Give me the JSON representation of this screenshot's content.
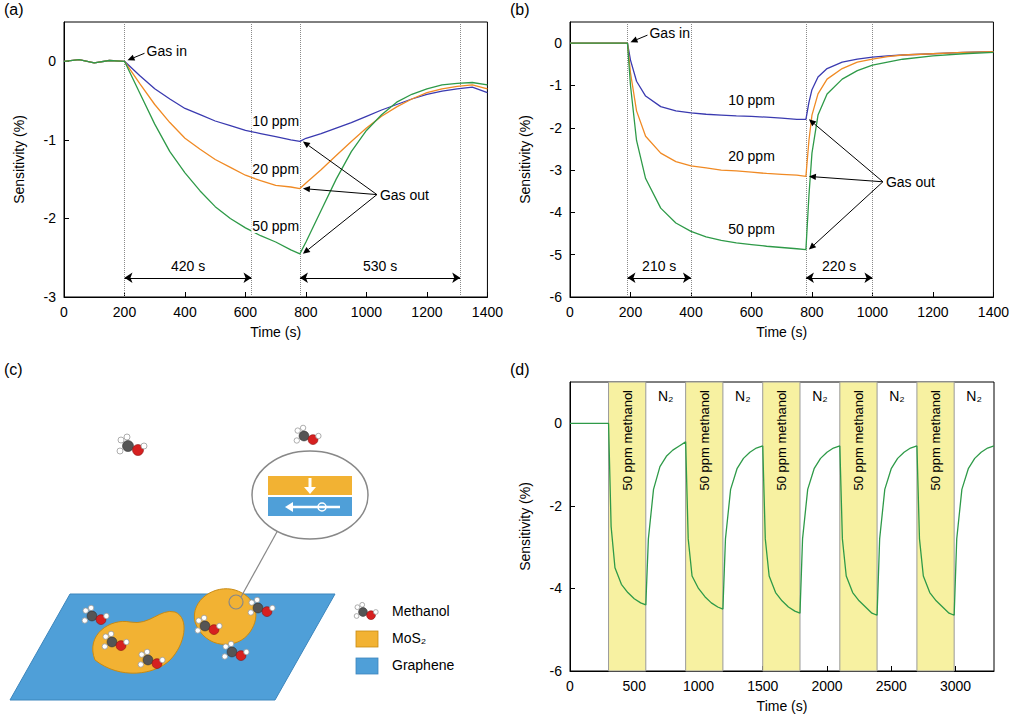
{
  "chart_data": [
    {
      "panel": "(a)",
      "type": "line",
      "x_label": "Time (s)",
      "y_label": "Sensitivity (%)",
      "xlim": [
        0,
        1400
      ],
      "xticks": [
        0,
        200,
        400,
        600,
        800,
        1000,
        1200,
        1400
      ],
      "ylim": [
        -3,
        0.5
      ],
      "yticks": [
        -3,
        -2,
        -1,
        0
      ],
      "grid": false,
      "x": [
        0,
        50,
        100,
        150,
        200,
        250,
        300,
        350,
        400,
        450,
        500,
        550,
        600,
        650,
        700,
        750,
        780,
        800,
        850,
        900,
        950,
        1000,
        1050,
        1100,
        1150,
        1200,
        1250,
        1300,
        1350,
        1400
      ],
      "series": [
        {
          "name": "10 ppm",
          "color": "#3a3ab0",
          "values": [
            0,
            0.02,
            -0.02,
            0.01,
            0,
            -0.18,
            -0.35,
            -0.48,
            -0.6,
            -0.68,
            -0.76,
            -0.82,
            -0.88,
            -0.92,
            -0.96,
            -1.0,
            -1.02,
            -0.98,
            -0.92,
            -0.85,
            -0.78,
            -0.7,
            -0.62,
            -0.55,
            -0.48,
            -0.42,
            -0.38,
            -0.35,
            -0.33,
            -0.4
          ]
        },
        {
          "name": "20 ppm",
          "color": "#f08a24",
          "values": [
            0,
            0.02,
            -0.02,
            0.01,
            0,
            -0.28,
            -0.55,
            -0.78,
            -0.98,
            -1.12,
            -1.25,
            -1.35,
            -1.45,
            -1.52,
            -1.58,
            -1.6,
            -1.62,
            -1.55,
            -1.38,
            -1.2,
            -1.02,
            -0.85,
            -0.7,
            -0.58,
            -0.48,
            -0.4,
            -0.35,
            -0.32,
            -0.3,
            -0.35
          ]
        },
        {
          "name": "50 ppm",
          "color": "#2e9a48",
          "values": [
            0,
            0.02,
            -0.02,
            0.01,
            0,
            -0.4,
            -0.8,
            -1.15,
            -1.42,
            -1.65,
            -1.85,
            -2.0,
            -2.12,
            -2.22,
            -2.3,
            -2.4,
            -2.45,
            -2.3,
            -1.9,
            -1.5,
            -1.15,
            -0.88,
            -0.68,
            -0.52,
            -0.42,
            -0.35,
            -0.3,
            -0.28,
            -0.27,
            -0.3
          ]
        }
      ],
      "annotations": {
        "gas_in": "Gas in",
        "gas_out": "Gas out",
        "spans": [
          {
            "label": "420 s",
            "from": 200,
            "to": 620
          },
          {
            "label": "530 s",
            "from": 780,
            "to": 1310
          }
        ]
      }
    },
    {
      "panel": "(b)",
      "type": "line",
      "x_label": "Time (s)",
      "y_label": "Sensitivity (%)",
      "xlim": [
        0,
        1400
      ],
      "xticks": [
        0,
        200,
        400,
        600,
        800,
        1000,
        1200,
        1400
      ],
      "ylim": [
        -6,
        0.5
      ],
      "yticks": [
        -6,
        -5,
        -4,
        -3,
        -2,
        -1,
        0
      ],
      "grid": false,
      "x": [
        0,
        50,
        100,
        150,
        190,
        200,
        220,
        250,
        300,
        350,
        400,
        450,
        500,
        550,
        600,
        650,
        700,
        750,
        780,
        790,
        800,
        820,
        850,
        900,
        950,
        1000,
        1050,
        1100,
        1200,
        1300,
        1400
      ],
      "series": [
        {
          "name": "10 ppm",
          "color": "#3a3ab0",
          "values": [
            0,
            0,
            0,
            0,
            0,
            -0.4,
            -0.9,
            -1.25,
            -1.5,
            -1.6,
            -1.65,
            -1.68,
            -1.7,
            -1.72,
            -1.73,
            -1.75,
            -1.77,
            -1.8,
            -1.8,
            -1.4,
            -1.1,
            -0.8,
            -0.6,
            -0.45,
            -0.38,
            -0.33,
            -0.3,
            -0.28,
            -0.25,
            -0.22,
            -0.2
          ]
        },
        {
          "name": "20 ppm",
          "color": "#f08a24",
          "values": [
            0,
            0,
            0,
            0,
            0,
            -0.7,
            -1.6,
            -2.2,
            -2.6,
            -2.8,
            -2.9,
            -2.95,
            -3.0,
            -3.02,
            -3.05,
            -3.08,
            -3.1,
            -3.12,
            -3.15,
            -2.3,
            -1.7,
            -1.2,
            -0.85,
            -0.6,
            -0.45,
            -0.38,
            -0.32,
            -0.28,
            -0.25,
            -0.22,
            -0.2
          ]
        },
        {
          "name": "50 ppm",
          "color": "#2e9a48",
          "values": [
            0,
            0,
            0,
            0,
            0,
            -1.0,
            -2.3,
            -3.2,
            -3.9,
            -4.25,
            -4.45,
            -4.58,
            -4.66,
            -4.72,
            -4.76,
            -4.8,
            -4.83,
            -4.86,
            -4.88,
            -3.6,
            -2.6,
            -1.7,
            -1.2,
            -0.85,
            -0.65,
            -0.52,
            -0.45,
            -0.38,
            -0.3,
            -0.25,
            -0.22
          ]
        }
      ],
      "annotations": {
        "gas_in": "Gas in",
        "gas_out": "Gas out",
        "spans": [
          {
            "label": "210 s",
            "from": 190,
            "to": 400
          },
          {
            "label": "220 s",
            "from": 780,
            "to": 1000
          }
        ]
      }
    },
    {
      "panel": "(d)",
      "type": "line",
      "x_label": "Time (s)",
      "y_label": "Sensitivity (%)",
      "xlim": [
        0,
        3300
      ],
      "xticks": [
        0,
        500,
        1000,
        1500,
        2000,
        2500,
        3000
      ],
      "ylim": [
        -6,
        1
      ],
      "yticks": [
        -6,
        -4,
        -2,
        0
      ],
      "grid": false,
      "x": [
        0,
        250,
        300,
        320,
        350,
        400,
        450,
        500,
        550,
        590,
        610,
        650,
        700,
        750,
        800,
        850,
        900,
        920,
        950,
        1000,
        1050,
        1100,
        1150,
        1190,
        1210,
        1250,
        1300,
        1350,
        1400,
        1450,
        1500,
        1520,
        1550,
        1600,
        1650,
        1700,
        1750,
        1790,
        1810,
        1850,
        1900,
        1950,
        2000,
        2050,
        2100,
        2120,
        2150,
        2200,
        2250,
        2300,
        2350,
        2390,
        2410,
        2450,
        2500,
        2550,
        2600,
        2650,
        2700,
        2720,
        2750,
        2800,
        2850,
        2900,
        2950,
        2990,
        3010,
        3050,
        3100,
        3150,
        3200,
        3250,
        3300
      ],
      "series": [
        {
          "color": "#2e9a48",
          "values": [
            0,
            0,
            0,
            -2.5,
            -3.5,
            -3.9,
            -4.1,
            -4.25,
            -4.35,
            -4.4,
            -2.8,
            -1.6,
            -1.05,
            -0.8,
            -0.65,
            -0.55,
            -0.45,
            -2.8,
            -3.7,
            -4.0,
            -4.2,
            -4.35,
            -4.45,
            -4.5,
            -2.8,
            -1.6,
            -1.1,
            -0.85,
            -0.7,
            -0.6,
            -0.55,
            -2.8,
            -3.7,
            -4.1,
            -4.3,
            -4.45,
            -4.55,
            -4.6,
            -2.8,
            -1.6,
            -1.1,
            -0.85,
            -0.7,
            -0.6,
            -0.55,
            -2.8,
            -3.7,
            -4.1,
            -4.3,
            -4.45,
            -4.6,
            -4.65,
            -2.8,
            -1.6,
            -1.1,
            -0.85,
            -0.7,
            -0.6,
            -0.55,
            -2.8,
            -3.7,
            -4.1,
            -4.3,
            -4.45,
            -4.6,
            -4.65,
            -2.8,
            -1.6,
            -1.1,
            -0.85,
            -0.7,
            -0.6,
            -0.55
          ]
        }
      ],
      "exposures": {
        "label": "50 ppm methanol",
        "color": "#f7f1a1",
        "spans": [
          {
            "from": 300,
            "to": 590
          },
          {
            "from": 900,
            "to": 1190
          },
          {
            "from": 1500,
            "to": 1790
          },
          {
            "from": 2100,
            "to": 2390
          },
          {
            "from": 2700,
            "to": 2990
          }
        ]
      },
      "purges": {
        "label": "N₂",
        "spans": [
          {
            "from": 590,
            "to": 900
          },
          {
            "from": 1190,
            "to": 1500
          },
          {
            "from": 1790,
            "to": 2100
          },
          {
            "from": 2390,
            "to": 2700
          },
          {
            "from": 2990,
            "to": 3300
          }
        ]
      }
    }
  ],
  "diagram": {
    "panel": "(c)",
    "items": [
      {
        "label": "Methanol"
      },
      {
        "label": "MoS₂",
        "color": "#f2b233"
      },
      {
        "label": "Graphene",
        "color": "#4f9fd8"
      }
    ]
  }
}
